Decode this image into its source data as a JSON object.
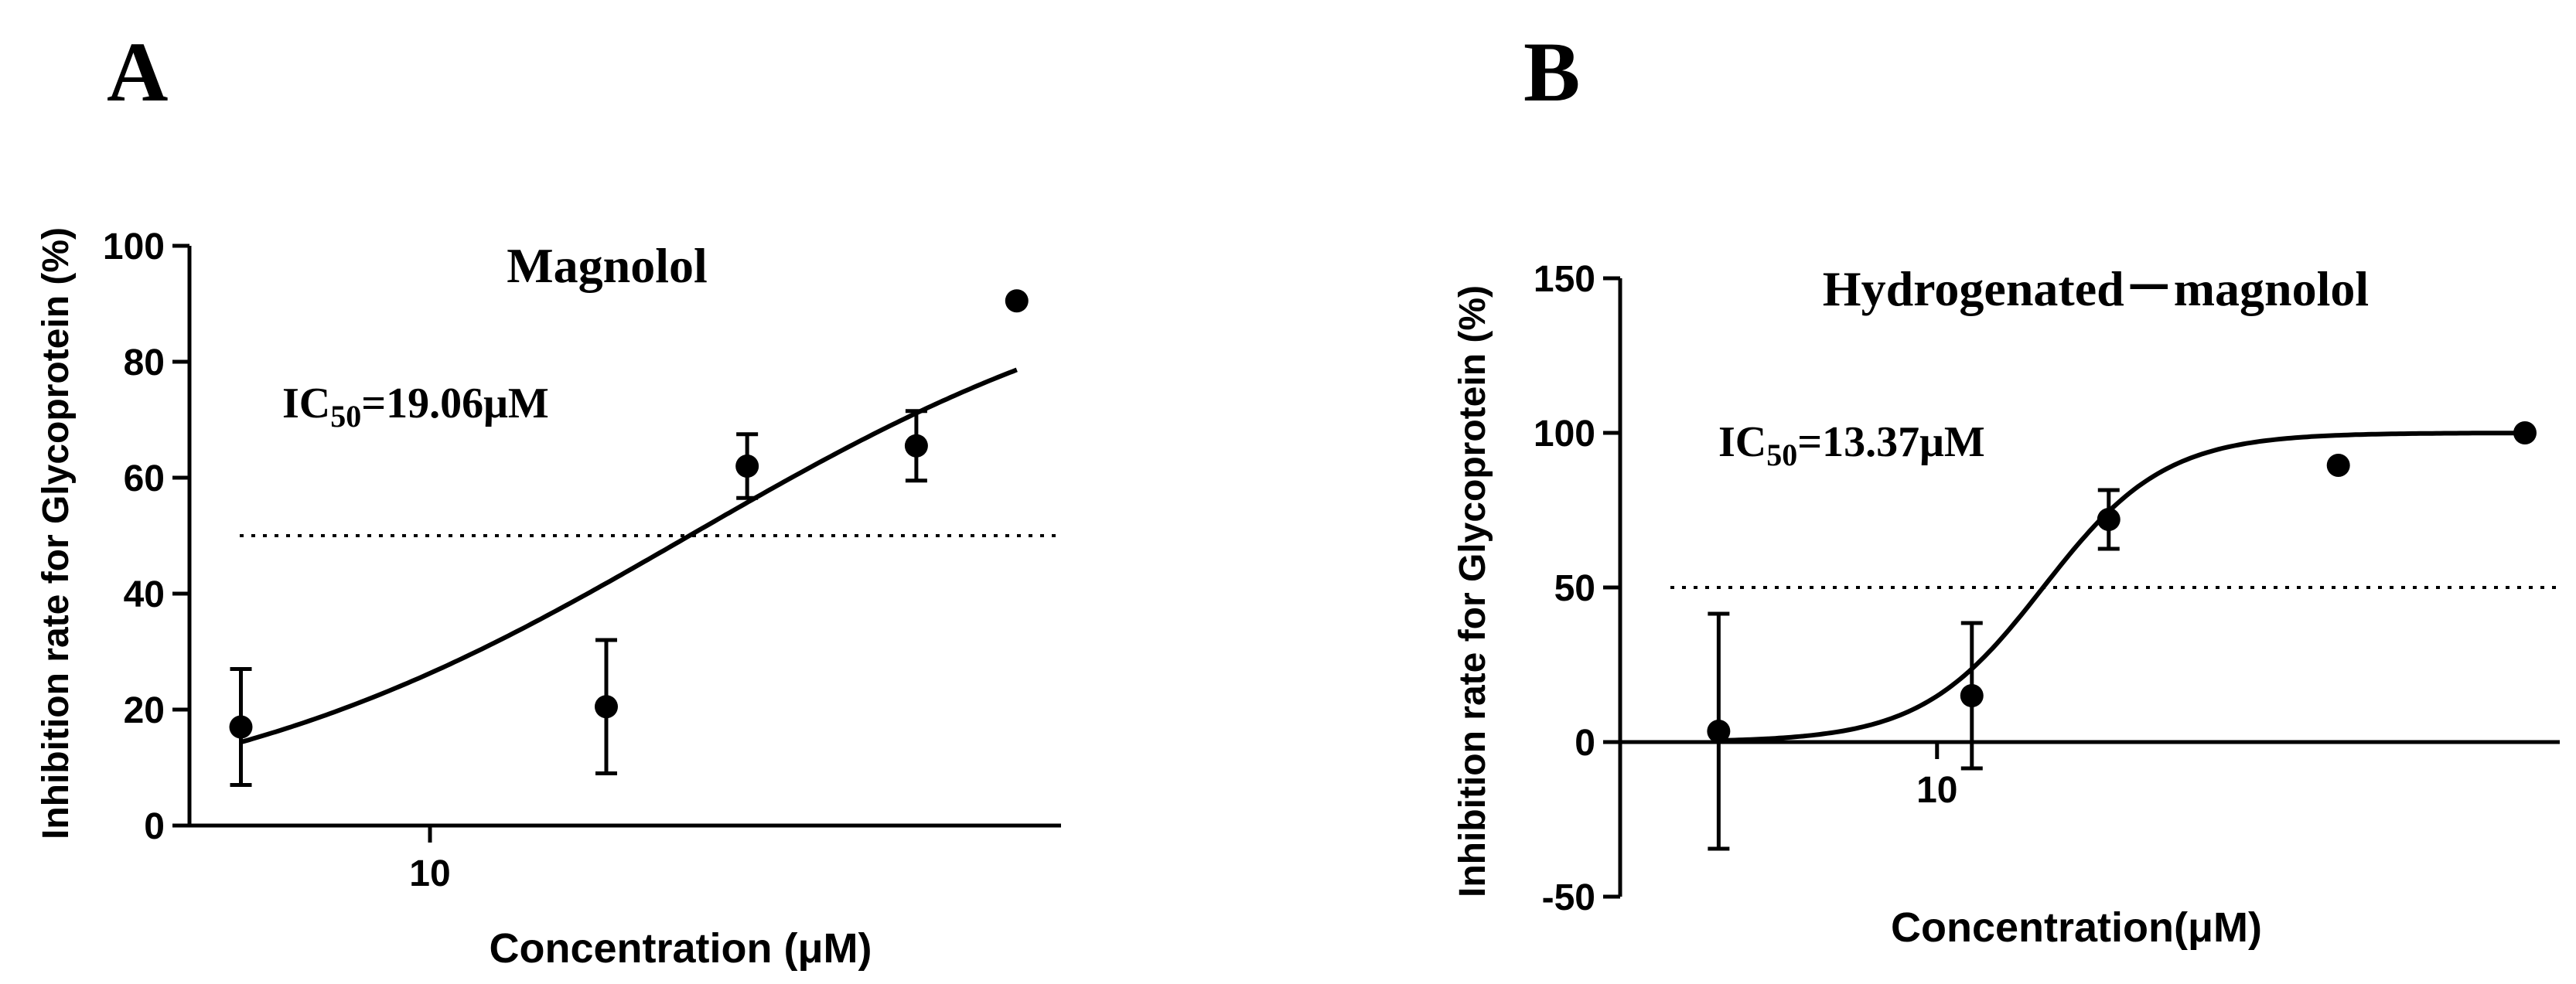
{
  "chart_data": [
    {
      "panel": "A",
      "type": "scatter",
      "title": "Magnolol",
      "ic50_prefix": "IC",
      "ic50_sub": "50",
      "ic50_value": "=19.06μM",
      "ic50": 19.06,
      "xlabel": "Concentration (μM)",
      "ylabel": "Inhibition rate for Glycoprotein (%)",
      "xscale": "log",
      "xlim": [
        5.5,
        48
      ],
      "ylim": [
        0,
        100
      ],
      "yticks": [
        0,
        20,
        40,
        60,
        80,
        100
      ],
      "xticks": [
        10
      ],
      "reference_line": 50,
      "hill": 1.6,
      "top": 100,
      "bottom": 0,
      "fit_range": [
        6.25,
        43
      ],
      "points": [
        {
          "x": 6.25,
          "y": 17,
          "err": 10
        },
        {
          "x": 15.5,
          "y": 20.5,
          "err": 11.5
        },
        {
          "x": 22,
          "y": 62,
          "err": 5.5
        },
        {
          "x": 33.5,
          "y": 65.5,
          "err": 6
        },
        {
          "x": 43,
          "y": 90.5,
          "err": 0
        }
      ]
    },
    {
      "panel": "B",
      "type": "scatter",
      "title": "Hydrogenated－magnolol",
      "ic50_prefix": "IC",
      "ic50_sub": "50",
      "ic50_value": "=13.37μM",
      "ic50": 13.37,
      "xlabel": "Concentration(μM)",
      "ylabel": "Inhibition rate for Glycoprotein (%)",
      "xscale": "log",
      "xlim": [
        4.2,
        55
      ],
      "ylim": [
        -50,
        150
      ],
      "yticks": [
        -50,
        0,
        50,
        100,
        150
      ],
      "xticks": [
        10
      ],
      "reference_line": 50,
      "hill": 6,
      "top": 100,
      "bottom": 0,
      "fit_range": [
        5.5,
        50
      ],
      "points": [
        {
          "x": 5.5,
          "y": 3.5,
          "err": 38
        },
        {
          "x": 11,
          "y": 15,
          "err": 23.5
        },
        {
          "x": 16,
          "y": 72,
          "err": 9.5
        },
        {
          "x": 30,
          "y": 89.5,
          "err": 0
        },
        {
          "x": 50,
          "y": 100,
          "err": 0
        }
      ]
    }
  ]
}
